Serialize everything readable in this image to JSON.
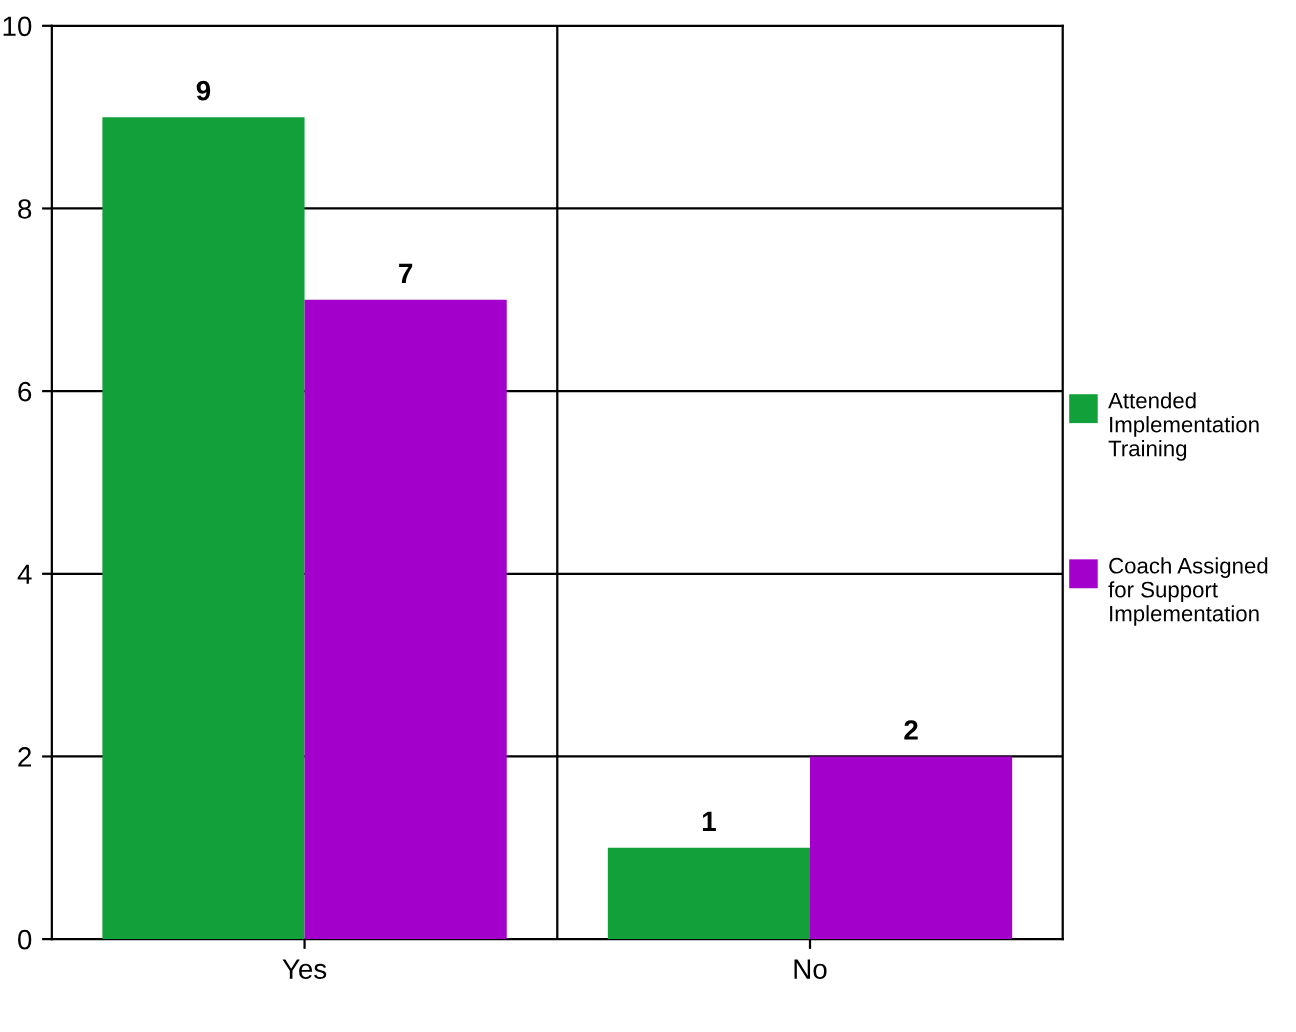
{
  "chart_data": {
    "type": "bar",
    "categories": [
      "Yes",
      "No"
    ],
    "series": [
      {
        "name": "Attended Implementation Training",
        "color": "#12a03a",
        "values": [
          9,
          1
        ]
      },
      {
        "name": "Coach Assigned for Support Implementation",
        "color": "#a400cc",
        "values": [
          7,
          2
        ]
      }
    ],
    "ylim": [
      0,
      10
    ],
    "yticks": [
      0,
      2,
      4,
      6,
      8,
      10
    ],
    "grid": "y",
    "legend": "right",
    "data_labels": true
  }
}
